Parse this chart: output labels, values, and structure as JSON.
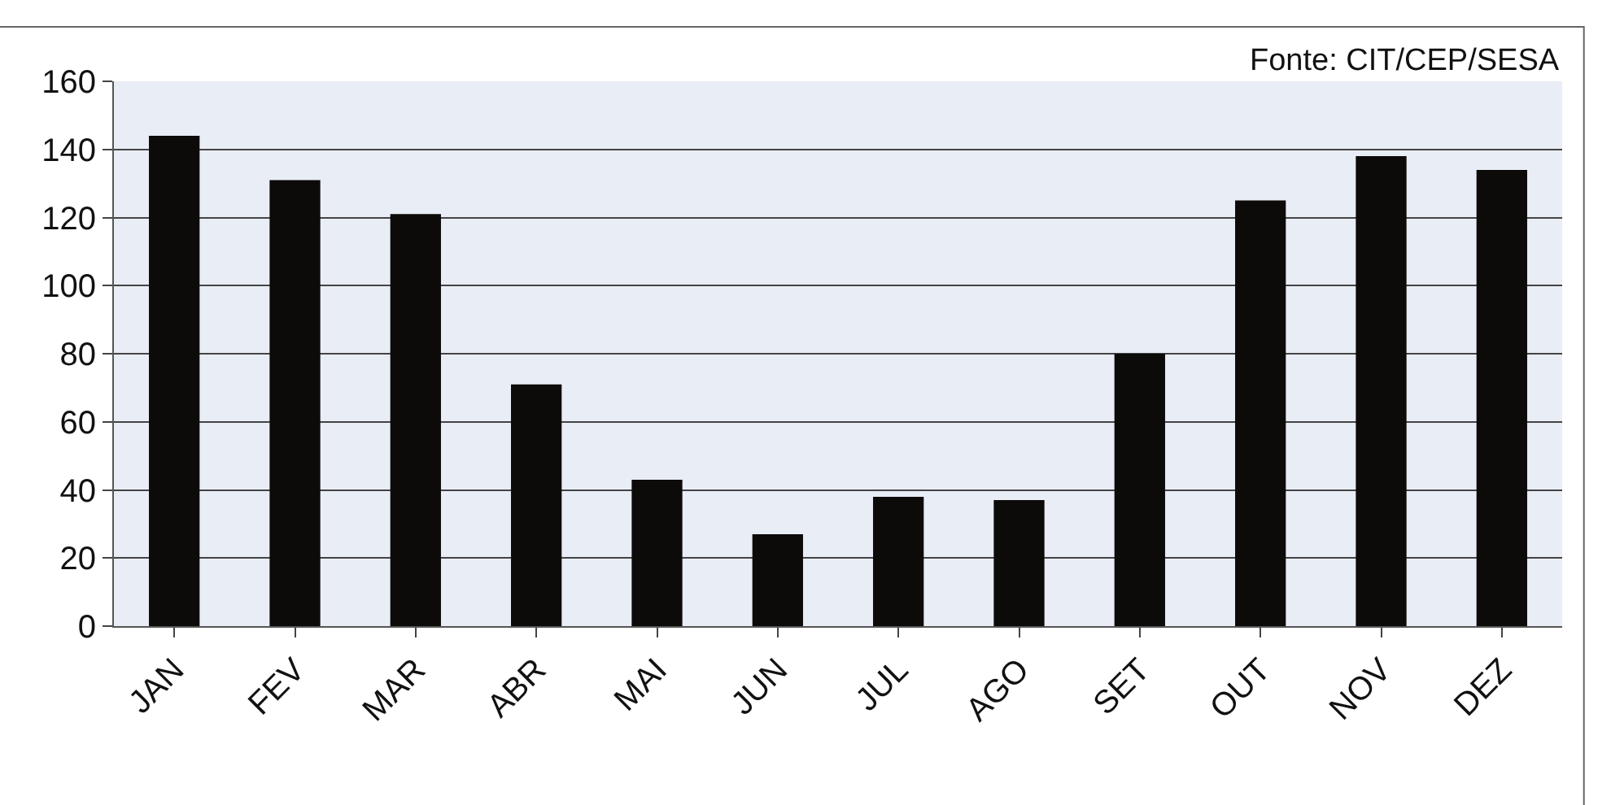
{
  "chart_data": {
    "type": "bar",
    "categories": [
      "JAN",
      "FEV",
      "MAR",
      "ABR",
      "MAI",
      "JUN",
      "JUL",
      "AGO",
      "SET",
      "OUT",
      "NOV",
      "DEZ"
    ],
    "values": [
      144,
      131,
      121,
      71,
      43,
      27,
      38,
      37,
      80,
      125,
      138,
      134
    ],
    "color": "#0d0a0a",
    "ylim": [
      0,
      160
    ],
    "yticks": [
      0,
      20,
      40,
      60,
      80,
      100,
      120,
      140,
      160
    ],
    "grid": "y",
    "annotations": [
      "Fonte: CIT/CEP/SESA"
    ]
  }
}
